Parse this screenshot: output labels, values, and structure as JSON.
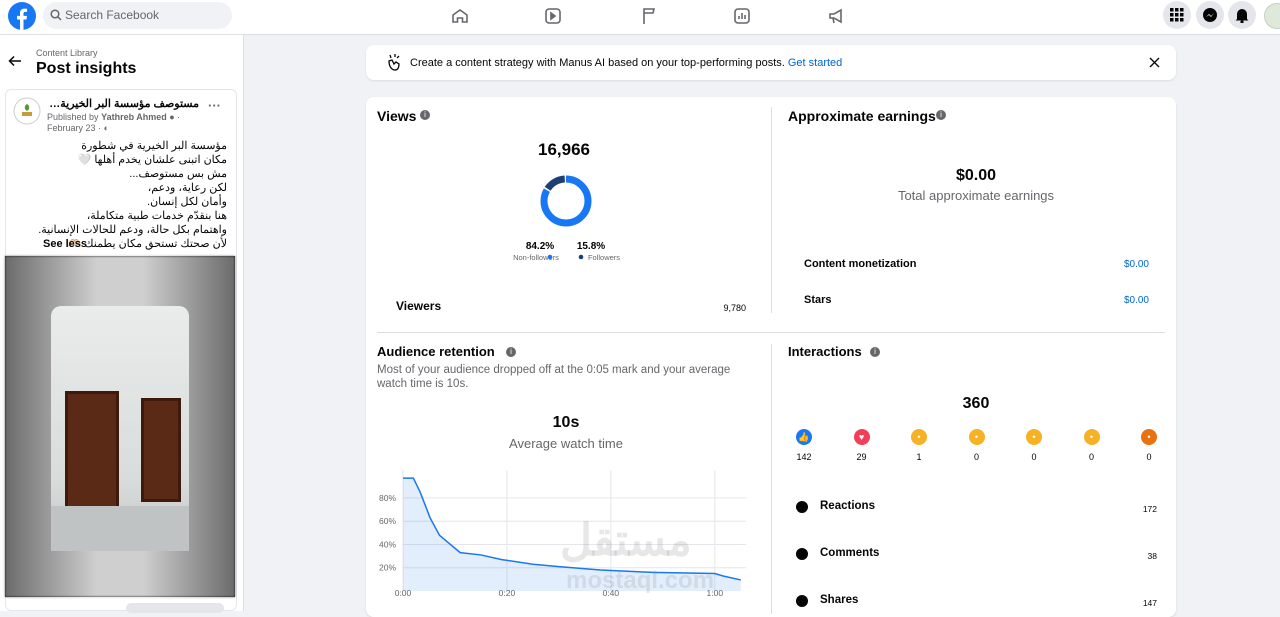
{
  "topbar": {
    "search_placeholder": "Search Facebook"
  },
  "sidebar": {
    "breadcrumb": "Content Library",
    "title": "Post insights",
    "post": {
      "page_name": "مستوصف مؤسسة البر الخيرية بشطورة",
      "published_by": "Published by",
      "author": "Yathreb Ahmed",
      "date": "February 23",
      "text_lines": [
        "مؤسسة البر الخيرية في شطورة",
        "مكان اتبنى علشان يخدم أهلها 🤍",
        "مش بس مستوصف...",
        "لكن رعاية، ودعم،",
        "وأمان لكل إنسان.",
        "هنا بنقدّم خدمات طبية متكاملة،",
        "واهتمام بكل حالة، ودعم للحالات الإنسانية.",
        "لأن صحتك تستحق مكان يطمنك 🫶🏻"
      ],
      "see_less": "See less"
    }
  },
  "banner": {
    "text": "Create a content strategy with Manus AI based on your top-performing posts.",
    "link": "Get started"
  },
  "views": {
    "title": "Views",
    "total": "16,966",
    "breakdown": {
      "type": "pie",
      "categories": [
        "Non-followers",
        "Followers"
      ],
      "values": [
        84.2,
        15.8
      ],
      "value_labels": [
        "84.2%",
        "15.8%"
      ],
      "colors": [
        "#1877f2",
        "#1c3f76"
      ]
    },
    "viewers_label": "Viewers",
    "viewers_value": "9,780"
  },
  "earnings": {
    "title": "Approximate earnings",
    "total": "$0.00",
    "total_label": "Total approximate earnings",
    "rows": [
      {
        "label": "Content monetization",
        "value": "$0.00"
      },
      {
        "label": "Stars",
        "value": "$0.00"
      }
    ]
  },
  "retention": {
    "title": "Audience retention",
    "description": "Most of your audience dropped off at the 0:05 mark and your average watch time is 10s.",
    "average": "10s",
    "average_label": "Average watch time",
    "chart": {
      "type": "line",
      "x": [
        0,
        2,
        3.3,
        5.2,
        7,
        11,
        15,
        19,
        25,
        30,
        38,
        48,
        60,
        61.5,
        65
      ],
      "values": [
        97,
        97,
        85,
        63,
        48,
        33,
        31,
        27,
        23,
        21,
        18,
        16,
        15,
        13,
        9.5
      ],
      "color": "#1877f2",
      "xlim": [
        0,
        66
      ],
      "ylim": [
        0,
        104
      ],
      "xticks": [
        {
          "value": 0,
          "label": "0:00"
        },
        {
          "value": 20,
          "label": "0:20"
        },
        {
          "value": 40,
          "label": "0:40"
        },
        {
          "value": 60,
          "label": "1:00"
        }
      ],
      "yticks": [
        {
          "value": 20,
          "label": "20%"
        },
        {
          "value": 40,
          "label": "40%"
        },
        {
          "value": 60,
          "label": "60%"
        },
        {
          "value": 80,
          "label": "80%"
        }
      ],
      "grid": true
    }
  },
  "interactions": {
    "title": "Interactions",
    "total": "360",
    "reaction_counts": [
      142,
      29,
      1,
      0,
      0,
      0,
      0
    ],
    "rows": [
      {
        "label": "Reactions",
        "value": 172
      },
      {
        "label": "Comments",
        "value": 38
      },
      {
        "label": "Shares",
        "value": 147
      }
    ]
  },
  "watermark": {
    "arabic": "مستقل",
    "latin": "mostaql.com"
  }
}
